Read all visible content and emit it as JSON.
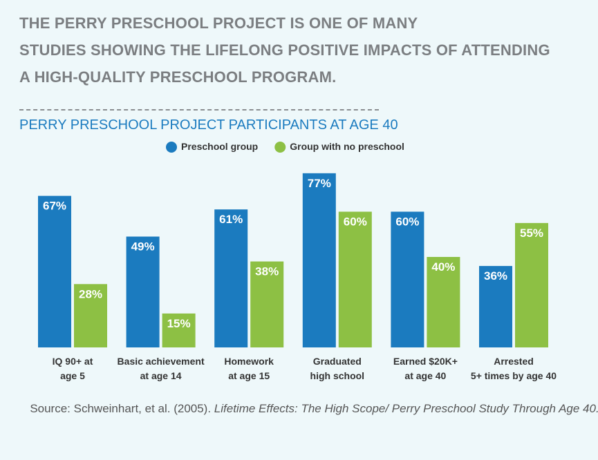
{
  "headline": "THE PERRY PRESCHOOL PROJECT IS ONE OF MANY\nSTUDIES SHOWING THE LIFELONG POSITIVE IMPACTS OF ATTENDING\nA HIGH-QUALITY PRESCHOOL PROGRAM.",
  "chart_data": {
    "type": "bar",
    "title": "PERRY PRESCHOOL PROJECT PARTICIPANTS AT AGE 40",
    "categories": [
      "IQ 90+ at\nage 5",
      "Basic achievement\nat age 14",
      "Homework\nat age 15",
      "Graduated\nhigh school",
      "Earned $20K+\nat age 40",
      "Arrested\n5+ times by age 40"
    ],
    "series": [
      {
        "name": "Preschool group",
        "color": "#1b7bbf",
        "values": [
          67,
          49,
          61,
          77,
          60,
          36
        ],
        "value_labels": [
          "67%",
          "49%",
          "61%",
          "77%",
          "60%",
          "36%"
        ]
      },
      {
        "name": "Group with no preschool",
        "color": "#8dc044",
        "values": [
          28,
          15,
          38,
          60,
          40,
          55
        ],
        "value_labels": [
          "28%",
          "15%",
          "38%",
          "60%",
          "40%",
          "55%"
        ]
      }
    ],
    "ylim": [
      0,
      80
    ]
  },
  "source": {
    "text": "Source: Schweinhart, et al. (2005). ",
    "italic": "Lifetime Effects: The High Scope/ Perry Preschool Study Through Age 40."
  }
}
